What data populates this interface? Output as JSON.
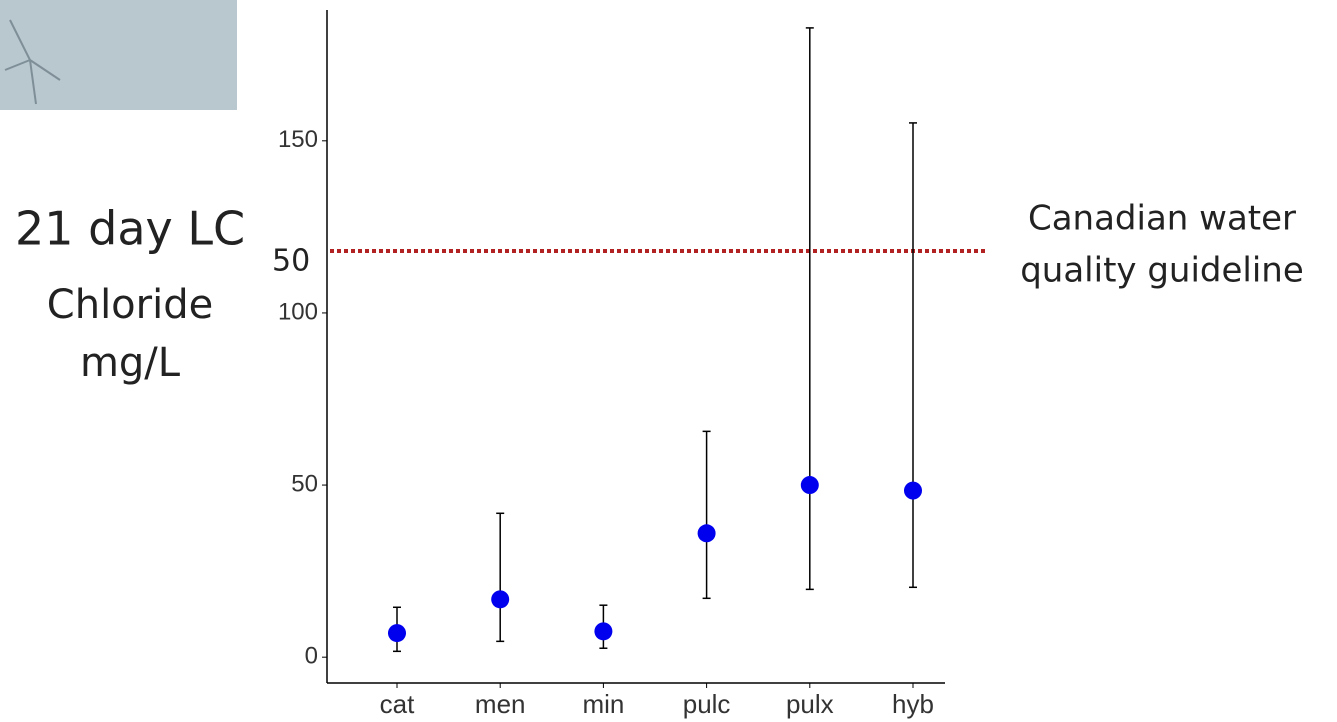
{
  "chart_data": {
    "type": "errorpoint",
    "ylabel_main": "21 day LC",
    "ylabel_sub": "50",
    "ylabel_lines": [
      "Chloride",
      "mg/L"
    ],
    "categories": [
      "cat",
      "men",
      "min",
      "pulc",
      "pulx",
      "hyb"
    ],
    "series": [
      {
        "color": "#0000ee",
        "values": [
          7,
          16.8,
          7.5,
          36,
          50,
          48.4
        ],
        "lower": [
          1.7,
          4.6,
          2.6,
          17.1,
          19.7,
          20.3
        ],
        "upper": [
          14.5,
          41.8,
          15.1,
          65.6,
          182.8,
          155.2
        ]
      }
    ],
    "ylim": [
      -7.5,
      188
    ],
    "yticks": [
      0,
      50,
      100,
      150
    ],
    "guideline": {
      "value": 118,
      "color": "#b22222",
      "label_lines": [
        "Canadian water",
        "quality guideline"
      ]
    }
  }
}
